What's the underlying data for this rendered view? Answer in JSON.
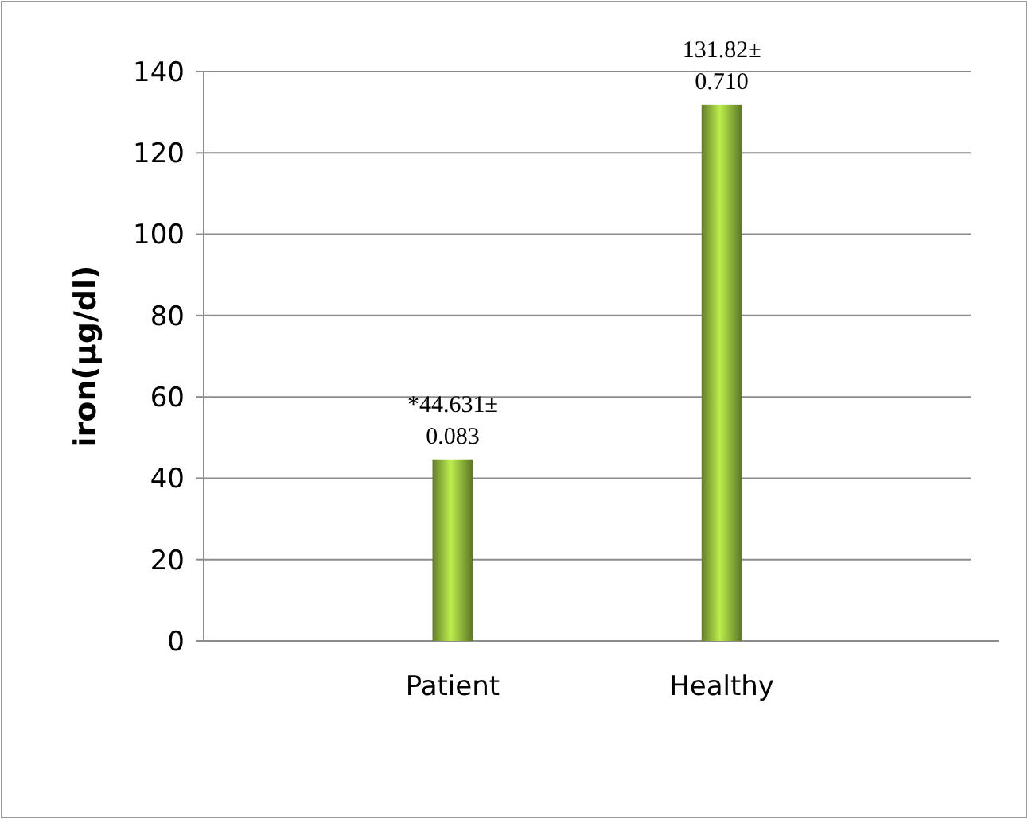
{
  "chart_data": {
    "type": "bar",
    "ylabel": "iron(µg/dl)",
    "categories": [
      "Patient",
      "Healthy"
    ],
    "values": [
      44.631,
      131.82
    ],
    "value_labels": [
      "*44.631± 0.083",
      "131.82± 0.710"
    ],
    "color": "#8db33a",
    "ylim": [
      0,
      140
    ],
    "yticks": [
      0,
      20,
      40,
      60,
      80,
      100,
      120,
      140
    ],
    "grid": "y"
  }
}
